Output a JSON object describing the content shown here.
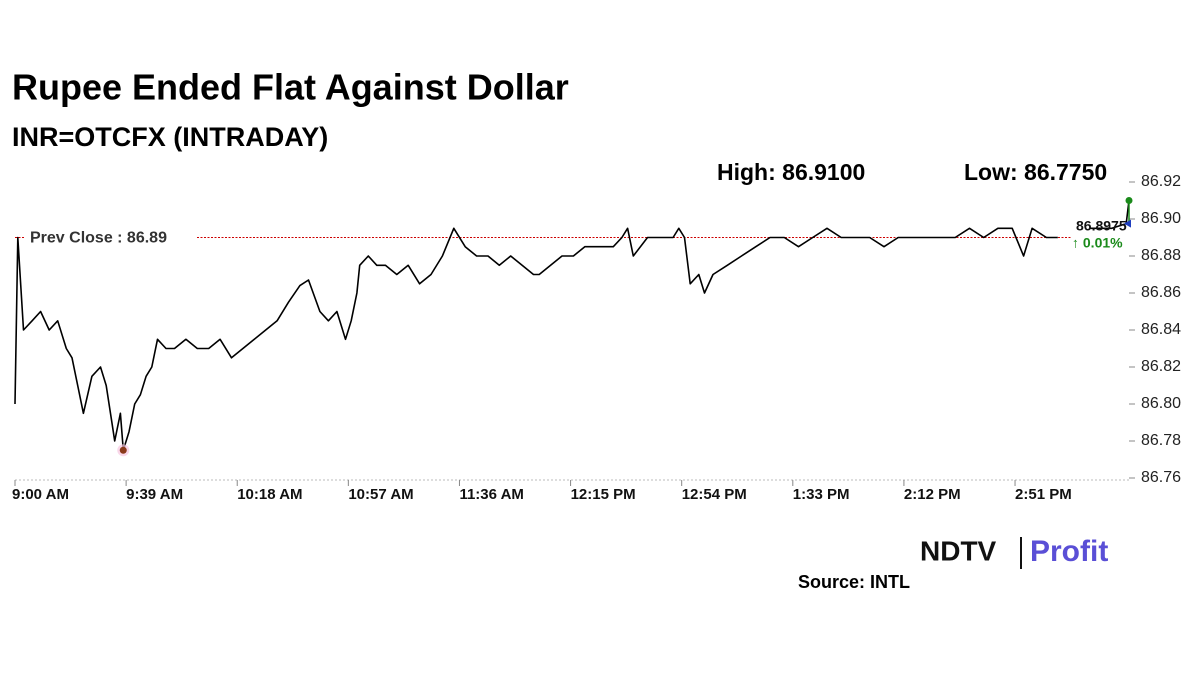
{
  "title": "Rupee Ended Flat Against Dollar",
  "subtitle": "INR=OTCFX (INTRADAY)",
  "chart_data": {
    "type": "line",
    "high_label": "High: 86.9100",
    "low_label": "Low: 86.7750",
    "prev_close": {
      "value": 86.89,
      "label": "Prev Close : 86.89"
    },
    "prev_close_color": "#cc0000",
    "last_value": 86.8975,
    "change_label": "↑ 0.01%",
    "change_color": "#1a8a1a",
    "high_color": "#1a8a1a",
    "low_color": "#8b3a1a",
    "x": [
      "9:00 AM",
      "9:01 AM",
      "9:03 AM",
      "9:06 AM",
      "9:09 AM",
      "9:12 AM",
      "9:15 AM",
      "9:18 AM",
      "9:20 AM",
      "9:22 AM",
      "9:24 AM",
      "9:27 AM",
      "9:30 AM",
      "9:32 AM",
      "9:34 AM",
      "9:35 AM",
      "9:37 AM",
      "9:38 AM",
      "9:40 AM",
      "9:42 AM",
      "9:44 AM",
      "9:46 AM",
      "9:48 AM",
      "9:50 AM",
      "9:53 AM",
      "9:56 AM",
      "10:00 AM",
      "10:04 AM",
      "10:08 AM",
      "10:12 AM",
      "10:16 AM",
      "10:20 AM",
      "10:24 AM",
      "10:28 AM",
      "10:32 AM",
      "10:36 AM",
      "10:40 AM",
      "10:43 AM",
      "10:47 AM",
      "10:50 AM",
      "10:53 AM",
      "10:56 AM",
      "10:58 AM",
      "11:00 AM",
      "11:01 AM",
      "11:04 AM",
      "11:07 AM",
      "11:10 AM",
      "11:14 AM",
      "11:18 AM",
      "11:22 AM",
      "11:26 AM",
      "11:30 AM",
      "11:34 AM",
      "11:38 AM",
      "11:42 AM",
      "11:46 AM",
      "11:50 AM",
      "11:54 AM",
      "11:58 AM",
      "12:02 PM",
      "12:04 PM",
      "12:08 PM",
      "12:12 PM",
      "12:16 PM",
      "12:20 PM",
      "12:25 PM",
      "12:30 PM",
      "12:33 PM",
      "12:35 PM",
      "12:37 PM",
      "12:42 PM",
      "12:47 PM",
      "12:51 PM",
      "12:53 PM",
      "12:55 PM",
      "12:57 PM",
      "1:00 PM",
      "1:02 PM",
      "1:05 PM",
      "1:10 PM",
      "1:15 PM",
      "1:20 PM",
      "1:25 PM",
      "1:30 PM",
      "1:35 PM",
      "1:40 PM",
      "1:45 PM",
      "1:50 PM",
      "1:55 PM",
      "2:00 PM",
      "2:05 PM",
      "2:10 PM",
      "2:15 PM",
      "2:20 PM",
      "2:25 PM",
      "2:30 PM",
      "2:35 PM",
      "2:40 PM",
      "2:45 PM",
      "2:50 PM",
      "2:54 PM",
      "2:57 PM",
      "3:02 PM",
      "3:06 PM",
      "3:10 PM",
      "3:17 PM",
      "3:25 PM",
      "3:30 PM",
      "3:31 PM"
    ],
    "series": [
      {
        "color": "#000000",
        "values": [
          86.8,
          86.89,
          86.84,
          86.845,
          86.85,
          86.84,
          86.845,
          86.83,
          86.825,
          86.81,
          86.795,
          86.815,
          86.82,
          86.81,
          86.79,
          86.78,
          86.795,
          86.775,
          86.785,
          86.8,
          86.805,
          86.815,
          86.82,
          86.835,
          86.83,
          86.83,
          86.835,
          86.83,
          86.83,
          86.835,
          86.825,
          86.83,
          86.835,
          86.84,
          86.845,
          86.855,
          86.864,
          86.867,
          86.85,
          86.845,
          86.85,
          86.835,
          86.845,
          86.86,
          86.875,
          86.88,
          86.875,
          86.875,
          86.87,
          86.875,
          86.865,
          86.87,
          86.88,
          86.895,
          86.885,
          86.88,
          86.88,
          86.875,
          86.88,
          86.875,
          86.87,
          86.87,
          86.875,
          86.88,
          86.88,
          86.885,
          86.885,
          86.885,
          86.89,
          86.895,
          86.88,
          86.89,
          86.89,
          86.89,
          86.895,
          86.89,
          86.865,
          86.87,
          86.86,
          86.87,
          86.875,
          86.88,
          86.885,
          86.89,
          86.89,
          86.885,
          86.89,
          86.895,
          86.89,
          86.89,
          86.89,
          86.885,
          86.89,
          86.89,
          86.89,
          86.89,
          86.89,
          86.895,
          86.89,
          86.895,
          86.895,
          86.88,
          86.895,
          86.89,
          86.89,
          null,
          86.895,
          86.895,
          86.8975,
          86.91
        ]
      }
    ],
    "xlim": [
      "9:00 AM",
      "3:31 PM"
    ],
    "xticks": [
      "9:00 AM",
      "9:39 AM",
      "10:18 AM",
      "10:57 AM",
      "11:36 AM",
      "12:15 PM",
      "12:54 PM",
      "1:33 PM",
      "2:12 PM",
      "2:51 PM"
    ],
    "ylim": [
      86.76,
      86.92
    ],
    "yticks": [
      86.76,
      86.78,
      {
        "value": 86.8,
        "label": "86.80"
      },
      86.82,
      86.84,
      86.86,
      86.88,
      {
        "value": 86.9,
        "label": "86.90"
      },
      86.92
    ]
  },
  "source": "Source: INTL",
  "logo": {
    "left": "NDTV",
    "right": "Profit"
  }
}
